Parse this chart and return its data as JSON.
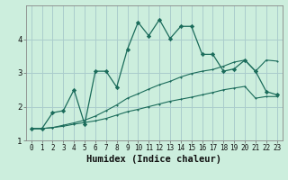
{
  "xlabel": "Humidex (Indice chaleur)",
  "background_color": "#cceedd",
  "grid_color": "#aacccc",
  "line_color": "#1a6b5a",
  "x_values": [
    0,
    1,
    2,
    3,
    4,
    5,
    6,
    7,
    8,
    9,
    10,
    11,
    12,
    13,
    14,
    15,
    16,
    17,
    18,
    19,
    20,
    21,
    22,
    23
  ],
  "series1": [
    1.35,
    1.35,
    1.38,
    1.42,
    1.48,
    1.53,
    1.58,
    1.65,
    1.75,
    1.85,
    1.92,
    2.0,
    2.08,
    2.16,
    2.22,
    2.28,
    2.35,
    2.42,
    2.5,
    2.55,
    2.6,
    2.25,
    2.3,
    2.3
  ],
  "series2": [
    1.35,
    1.35,
    1.38,
    1.45,
    1.52,
    1.6,
    1.72,
    1.88,
    2.05,
    2.25,
    2.38,
    2.52,
    2.65,
    2.75,
    2.88,
    2.98,
    3.05,
    3.1,
    3.2,
    3.32,
    3.38,
    3.05,
    3.38,
    3.35
  ],
  "series3": [
    1.35,
    1.35,
    1.82,
    1.88,
    2.5,
    1.48,
    3.05,
    3.05,
    2.58,
    3.7,
    4.5,
    4.1,
    4.58,
    4.02,
    4.38,
    4.38,
    3.55,
    3.55,
    3.05,
    3.12,
    3.38,
    3.05,
    2.45,
    2.35
  ],
  "ylim": [
    1.0,
    5.0
  ],
  "xlim": [
    -0.5,
    23.5
  ],
  "yticks": [
    1,
    2,
    3,
    4
  ],
  "xticks": [
    0,
    1,
    2,
    3,
    4,
    5,
    6,
    7,
    8,
    9,
    10,
    11,
    12,
    13,
    14,
    15,
    16,
    17,
    18,
    19,
    20,
    21,
    22,
    23
  ],
  "tick_fontsize": 5.5,
  "xlabel_fontsize": 7.5
}
